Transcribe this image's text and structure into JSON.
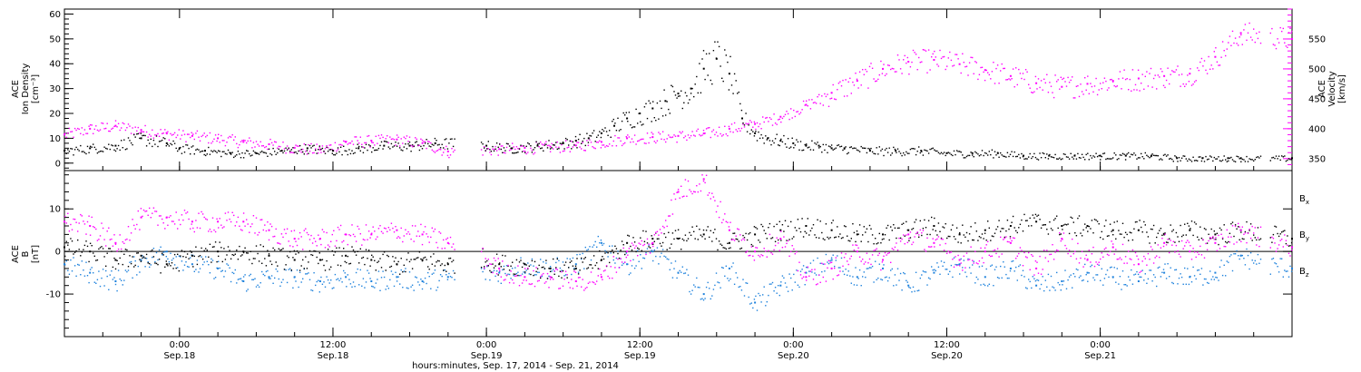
{
  "chart_data": [
    {
      "type": "scatter",
      "panel": "top",
      "x_unit": "hours since 0:00 Sep.17, 2014",
      "xlim": [
        15,
        111
      ],
      "left_axis": {
        "labels": [
          "ACE",
          "Ion Density",
          "[cm⁻³]"
        ],
        "ylim": [
          -3,
          62
        ],
        "ticks": [
          0,
          10,
          20,
          30,
          40,
          50,
          60
        ]
      },
      "right_axis": {
        "labels": [
          "ACE",
          "Velocity",
          "[km/s]"
        ],
        "ylim": [
          330,
          600
        ],
        "ticks": [
          350,
          400,
          450,
          500,
          550
        ],
        "color": "#ff00ff"
      },
      "series": [
        {
          "name": "Ion Density",
          "axis": "left",
          "color": "#000000",
          "x": [
            15,
            17,
            19,
            21,
            23,
            24,
            26,
            28,
            30,
            32,
            34,
            36,
            38,
            40,
            42,
            44,
            46,
            48,
            50,
            52,
            54,
            55,
            56,
            57,
            58,
            59,
            60,
            61,
            62,
            63,
            64,
            65,
            66,
            67,
            68,
            69,
            70,
            71,
            72,
            73,
            74,
            75,
            76,
            78,
            80,
            82,
            84,
            86,
            88,
            90,
            92,
            94,
            96,
            98,
            100,
            102,
            104,
            106,
            107,
            109,
            111
          ],
          "y": [
            5,
            6,
            7,
            10,
            8,
            6,
            5,
            4,
            4,
            5,
            6,
            5,
            6,
            7,
            7,
            8,
            8,
            7,
            6,
            7,
            8,
            9,
            10,
            12,
            15,
            18,
            20,
            22,
            25,
            28,
            30,
            38,
            42,
            36,
            18,
            12,
            10,
            9,
            8,
            7,
            7,
            6,
            6,
            5,
            5,
            5,
            4,
            4,
            4,
            3,
            3,
            3,
            3,
            3,
            3,
            2,
            2,
            2,
            2,
            2,
            2
          ]
        },
        {
          "name": "Velocity",
          "axis": "right",
          "color": "#ff00ff",
          "x": [
            15,
            17,
            19,
            21,
            23,
            25,
            27,
            29,
            31,
            33,
            35,
            37,
            39,
            41,
            43,
            45,
            47,
            49,
            51,
            53,
            55,
            57,
            59,
            61,
            63,
            65,
            67,
            69,
            71,
            73,
            75,
            77,
            79,
            81,
            83,
            85,
            87,
            89,
            91,
            93,
            95,
            97,
            99,
            101,
            103,
            105,
            107,
            109,
            111
          ],
          "y": [
            390,
            400,
            405,
            398,
            392,
            388,
            384,
            378,
            374,
            368,
            365,
            378,
            380,
            382,
            376,
            362,
            364,
            366,
            368,
            370,
            372,
            378,
            384,
            386,
            388,
            392,
            400,
            408,
            420,
            440,
            460,
            480,
            500,
            512,
            515,
            508,
            498,
            488,
            476,
            470,
            475,
            480,
            484,
            488,
            492,
            520,
            560,
            555,
            550
          ]
        }
      ]
    },
    {
      "type": "scatter",
      "panel": "bottom",
      "x_unit": "hours since 0:00 Sep.17, 2014",
      "xlim": [
        15,
        111
      ],
      "left_axis": {
        "labels": [
          "ACE",
          "B",
          "[nT]"
        ],
        "ylim": [
          -20,
          19
        ],
        "ticks": [
          -10,
          0,
          10
        ]
      },
      "zero_line": true,
      "series": [
        {
          "name": "Bx",
          "color": "#000000",
          "x": [
            15,
            17,
            19,
            21,
            23,
            25,
            27,
            29,
            31,
            33,
            35,
            37,
            39,
            41,
            43,
            45,
            47,
            49,
            51,
            53,
            55,
            57,
            59,
            61,
            63,
            65,
            67,
            69,
            71,
            73,
            75,
            77,
            79,
            81,
            83,
            85,
            87,
            89,
            91,
            93,
            95,
            97,
            99,
            101,
            103,
            105,
            107,
            109,
            111
          ],
          "y": [
            1,
            0,
            -2,
            -1,
            -3,
            -1,
            0,
            0,
            -1,
            -2,
            -2,
            -1,
            -2,
            -3,
            -2,
            -3,
            -1,
            -3,
            -3,
            -4,
            -4,
            -2,
            2,
            3,
            3,
            4,
            2,
            4,
            5,
            6,
            5,
            4,
            4,
            5,
            6,
            4,
            5,
            6,
            7,
            6,
            6,
            5,
            5,
            4,
            5,
            4,
            5,
            4,
            3
          ]
        },
        {
          "name": "By",
          "color": "#1e82dc",
          "x": [
            15,
            17,
            19,
            21,
            23,
            25,
            27,
            29,
            31,
            33,
            35,
            37,
            39,
            41,
            43,
            45,
            47,
            49,
            51,
            53,
            55,
            57,
            59,
            61,
            63,
            65,
            67,
            69,
            71,
            73,
            75,
            77,
            79,
            81,
            83,
            85,
            87,
            89,
            91,
            93,
            95,
            97,
            99,
            101,
            103,
            105,
            107,
            109,
            111
          ],
          "y": [
            -3,
            -5,
            -7,
            -2,
            0,
            -3,
            -4,
            -7,
            -6,
            -6,
            -7,
            -6,
            -7,
            -6,
            -7,
            -6,
            -5,
            -5,
            -3,
            -4,
            -3,
            2,
            -3,
            0,
            -5,
            -10,
            -4,
            -12,
            -8,
            -5,
            -2,
            -6,
            -4,
            -8,
            -5,
            -3,
            -6,
            -4,
            -8,
            -7,
            -5,
            -6,
            -7,
            -5,
            -6,
            -5,
            -1,
            -3,
            -4
          ]
        },
        {
          "name": "Bz",
          "color": "#ff00ff",
          "x": [
            15,
            17,
            19,
            21,
            23,
            25,
            27,
            29,
            31,
            33,
            35,
            37,
            39,
            41,
            43,
            45,
            47,
            49,
            51,
            53,
            55,
            57,
            59,
            61,
            63,
            65,
            67,
            69,
            71,
            73,
            75,
            77,
            79,
            81,
            83,
            85,
            87,
            89,
            91,
            93,
            95,
            97,
            99,
            101,
            103,
            105,
            107,
            109,
            111
          ],
          "y": [
            7,
            6,
            2,
            8,
            8,
            7,
            7,
            7,
            5,
            3,
            3,
            4,
            4,
            5,
            4,
            2,
            0,
            -4,
            -6,
            -6,
            -7,
            -6,
            0,
            2,
            14,
            17,
            5,
            0,
            3,
            -6,
            -4,
            0,
            -2,
            4,
            2,
            -2,
            0,
            2,
            -4,
            3,
            -2,
            1,
            -3,
            2,
            0,
            2,
            5,
            3,
            1
          ]
        }
      ],
      "legend": [
        {
          "label": "B",
          "sub": "x",
          "color": "#000000"
        },
        {
          "label": "B",
          "sub": "y",
          "color": "#1e82dc"
        },
        {
          "label": "B",
          "sub": "z",
          "color": "#ff00ff"
        }
      ]
    }
  ],
  "x_axis": {
    "ticks": [
      {
        "hours": 24,
        "time": "0:00",
        "date": "Sep.18"
      },
      {
        "hours": 36,
        "time": "12:00",
        "date": "Sep.18"
      },
      {
        "hours": 48,
        "time": "0:00",
        "date": "Sep.19"
      },
      {
        "hours": 60,
        "time": "12:00",
        "date": "Sep.19"
      },
      {
        "hours": 72,
        "time": "0:00",
        "date": "Sep.20"
      },
      {
        "hours": 84,
        "time": "12:00",
        "date": "Sep.20"
      },
      {
        "hours": 96,
        "time": "0:00",
        "date": "Sep.21"
      }
    ],
    "label": "hours:minutes, Sep. 17, 2014 - Sep. 21, 2014"
  }
}
